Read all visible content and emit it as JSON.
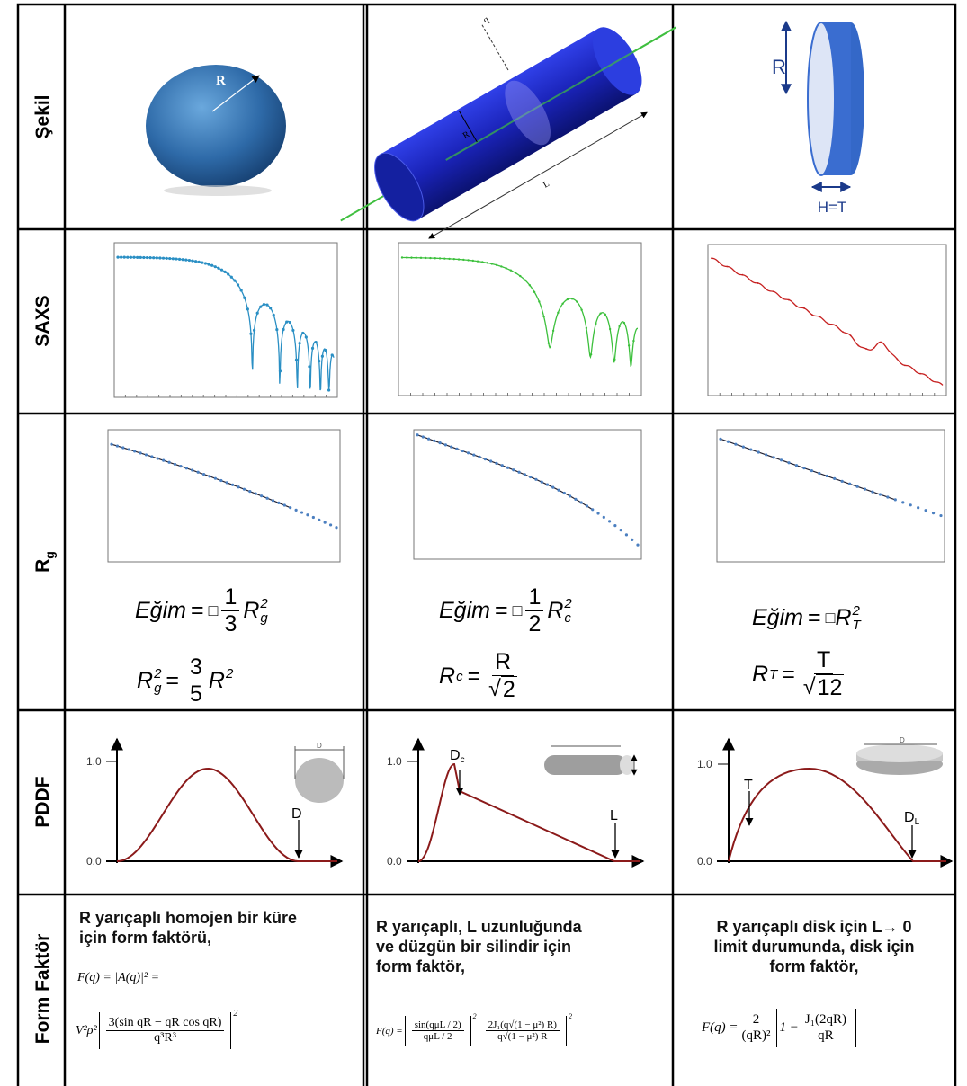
{
  "row_labels": {
    "shape": "Şekil",
    "saxs": "SAXS",
    "rg": {
      "main": "R",
      "sub": "g"
    },
    "pddf": "PDDF",
    "form_factor": "Form Faktör"
  },
  "shapes": {
    "sphere": {
      "radius_label": "R"
    },
    "cylinder": {
      "radius_label": "R",
      "length_label": "L",
      "axis_label": "q"
    },
    "disk": {
      "radius_label": "R",
      "thickness_label": "H=T"
    }
  },
  "rg": [
    {
      "slope": {
        "lhs": "Eğim",
        "eq": "=",
        "sign": "□",
        "num": "1",
        "den": "3",
        "var": "R",
        "sub": "g",
        "sup": "2"
      },
      "relation": {
        "var": "R",
        "sub": "g",
        "sup": "2",
        "eq": "=",
        "num": "3",
        "den": "5",
        "rhs": "R",
        "rhs_sup": "2"
      }
    },
    {
      "slope": {
        "lhs": "Eğim",
        "eq": "=",
        "sign": "□",
        "num": "1",
        "den": "2",
        "var": "R",
        "sub": "c",
        "sup": "2"
      },
      "relation": {
        "var": "R",
        "sub": "c",
        "eq": "=",
        "num": "R",
        "root": "√",
        "den": "2"
      }
    },
    {
      "slope": {
        "lhs": "Eğim",
        "eq": "=",
        "sign": "□",
        "var": "R",
        "sub": "T",
        "sup": "2"
      },
      "relation": {
        "var": "R",
        "sub": "T",
        "eq": "=",
        "num": "T",
        "root": "√",
        "den": "12"
      }
    }
  ],
  "pddf": [
    {
      "y_top": "1.0",
      "y_bottom": "0.0",
      "marker": "D",
      "icon_label": "D"
    },
    {
      "y_top": "1.0",
      "y_bottom": "0.0",
      "marker": "D",
      "marker_sub": "c",
      "end_marker": "L"
    },
    {
      "y_top": "1.0",
      "y_bottom": "0.0",
      "marker": "T",
      "end_marker": "D",
      "end_marker_sub": "L",
      "icon_label": "D"
    }
  ],
  "form_factor": [
    {
      "lines": [
        "R yarıçaplı homojen bir küre",
        "için form faktörü,"
      ],
      "formula_head": "F(q) = |A(q)|² =",
      "formula": {
        "prefix": "V²ρ²",
        "num": "3(sin qR − qR cos qR)",
        "den": "q³R³",
        "power": "2"
      }
    },
    {
      "lines": [
        "R yarıçaplı, L uzunluğunda",
        "ve düzgün bir silindir için",
        "form faktör,"
      ],
      "formula": {
        "prefix": "F(q) =",
        "num1": "sin(qμL / 2)",
        "den1": "qμL / 2",
        "power1": "2",
        "num2": "2J₁(q√(1 − μ²) R)",
        "den2": "q√(1 − μ²) R",
        "power2": "2"
      }
    },
    {
      "lines": [
        "R yarıçaplı disk için L→ 0",
        "limit durumunda, disk için",
        "form faktör,"
      ],
      "formula": {
        "prefix": "F(q) =",
        "num1": "2",
        "den1": "(qR)²",
        "one_minus": "1 −",
        "num2": "J₁(2qR)",
        "den2": "qR"
      }
    }
  ]
}
